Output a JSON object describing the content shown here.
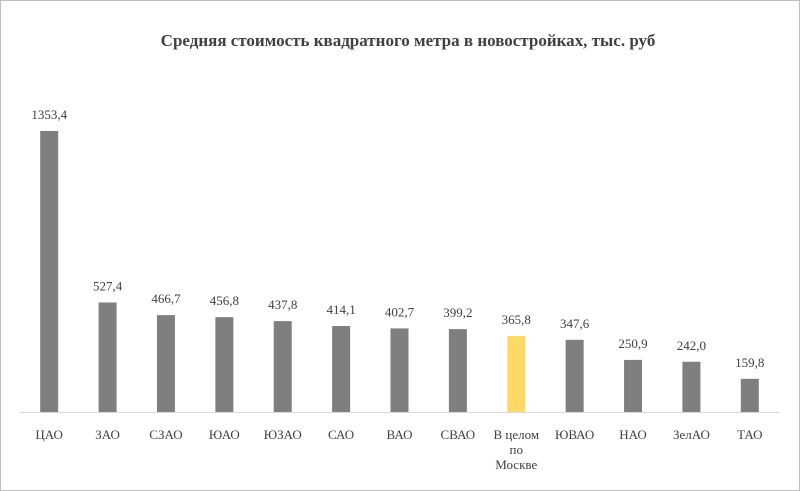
{
  "chart_data": {
    "type": "bar",
    "title": "Средняя стоимость  квадратного  метра в новостройках, тыс. руб",
    "categories": [
      "ЦАО",
      "ЗАО",
      "СЗАО",
      "ЮАО",
      "ЮЗАО",
      "САО",
      "ВАО",
      "СВАО",
      "В целом по Москве",
      "ЮВАО",
      "НАО",
      "ЗелАО",
      "ТАО"
    ],
    "values": [
      1353.4,
      527.4,
      466.7,
      456.8,
      437.8,
      414.1,
      402.7,
      399.2,
      365.8,
      347.6,
      250.9,
      242.0,
      159.8
    ],
    "value_labels": [
      "1353,4",
      "527,4",
      "466,7",
      "456,8",
      "437,8",
      "414,1",
      "402,7",
      "399,2",
      "365,8",
      "347,6",
      "250,9",
      "242,0",
      "159,8"
    ],
    "colors": [
      "#7f7f7f",
      "#7f7f7f",
      "#7f7f7f",
      "#7f7f7f",
      "#7f7f7f",
      "#7f7f7f",
      "#7f7f7f",
      "#7f7f7f",
      "#ffd966",
      "#7f7f7f",
      "#7f7f7f",
      "#7f7f7f",
      "#7f7f7f"
    ]
  }
}
